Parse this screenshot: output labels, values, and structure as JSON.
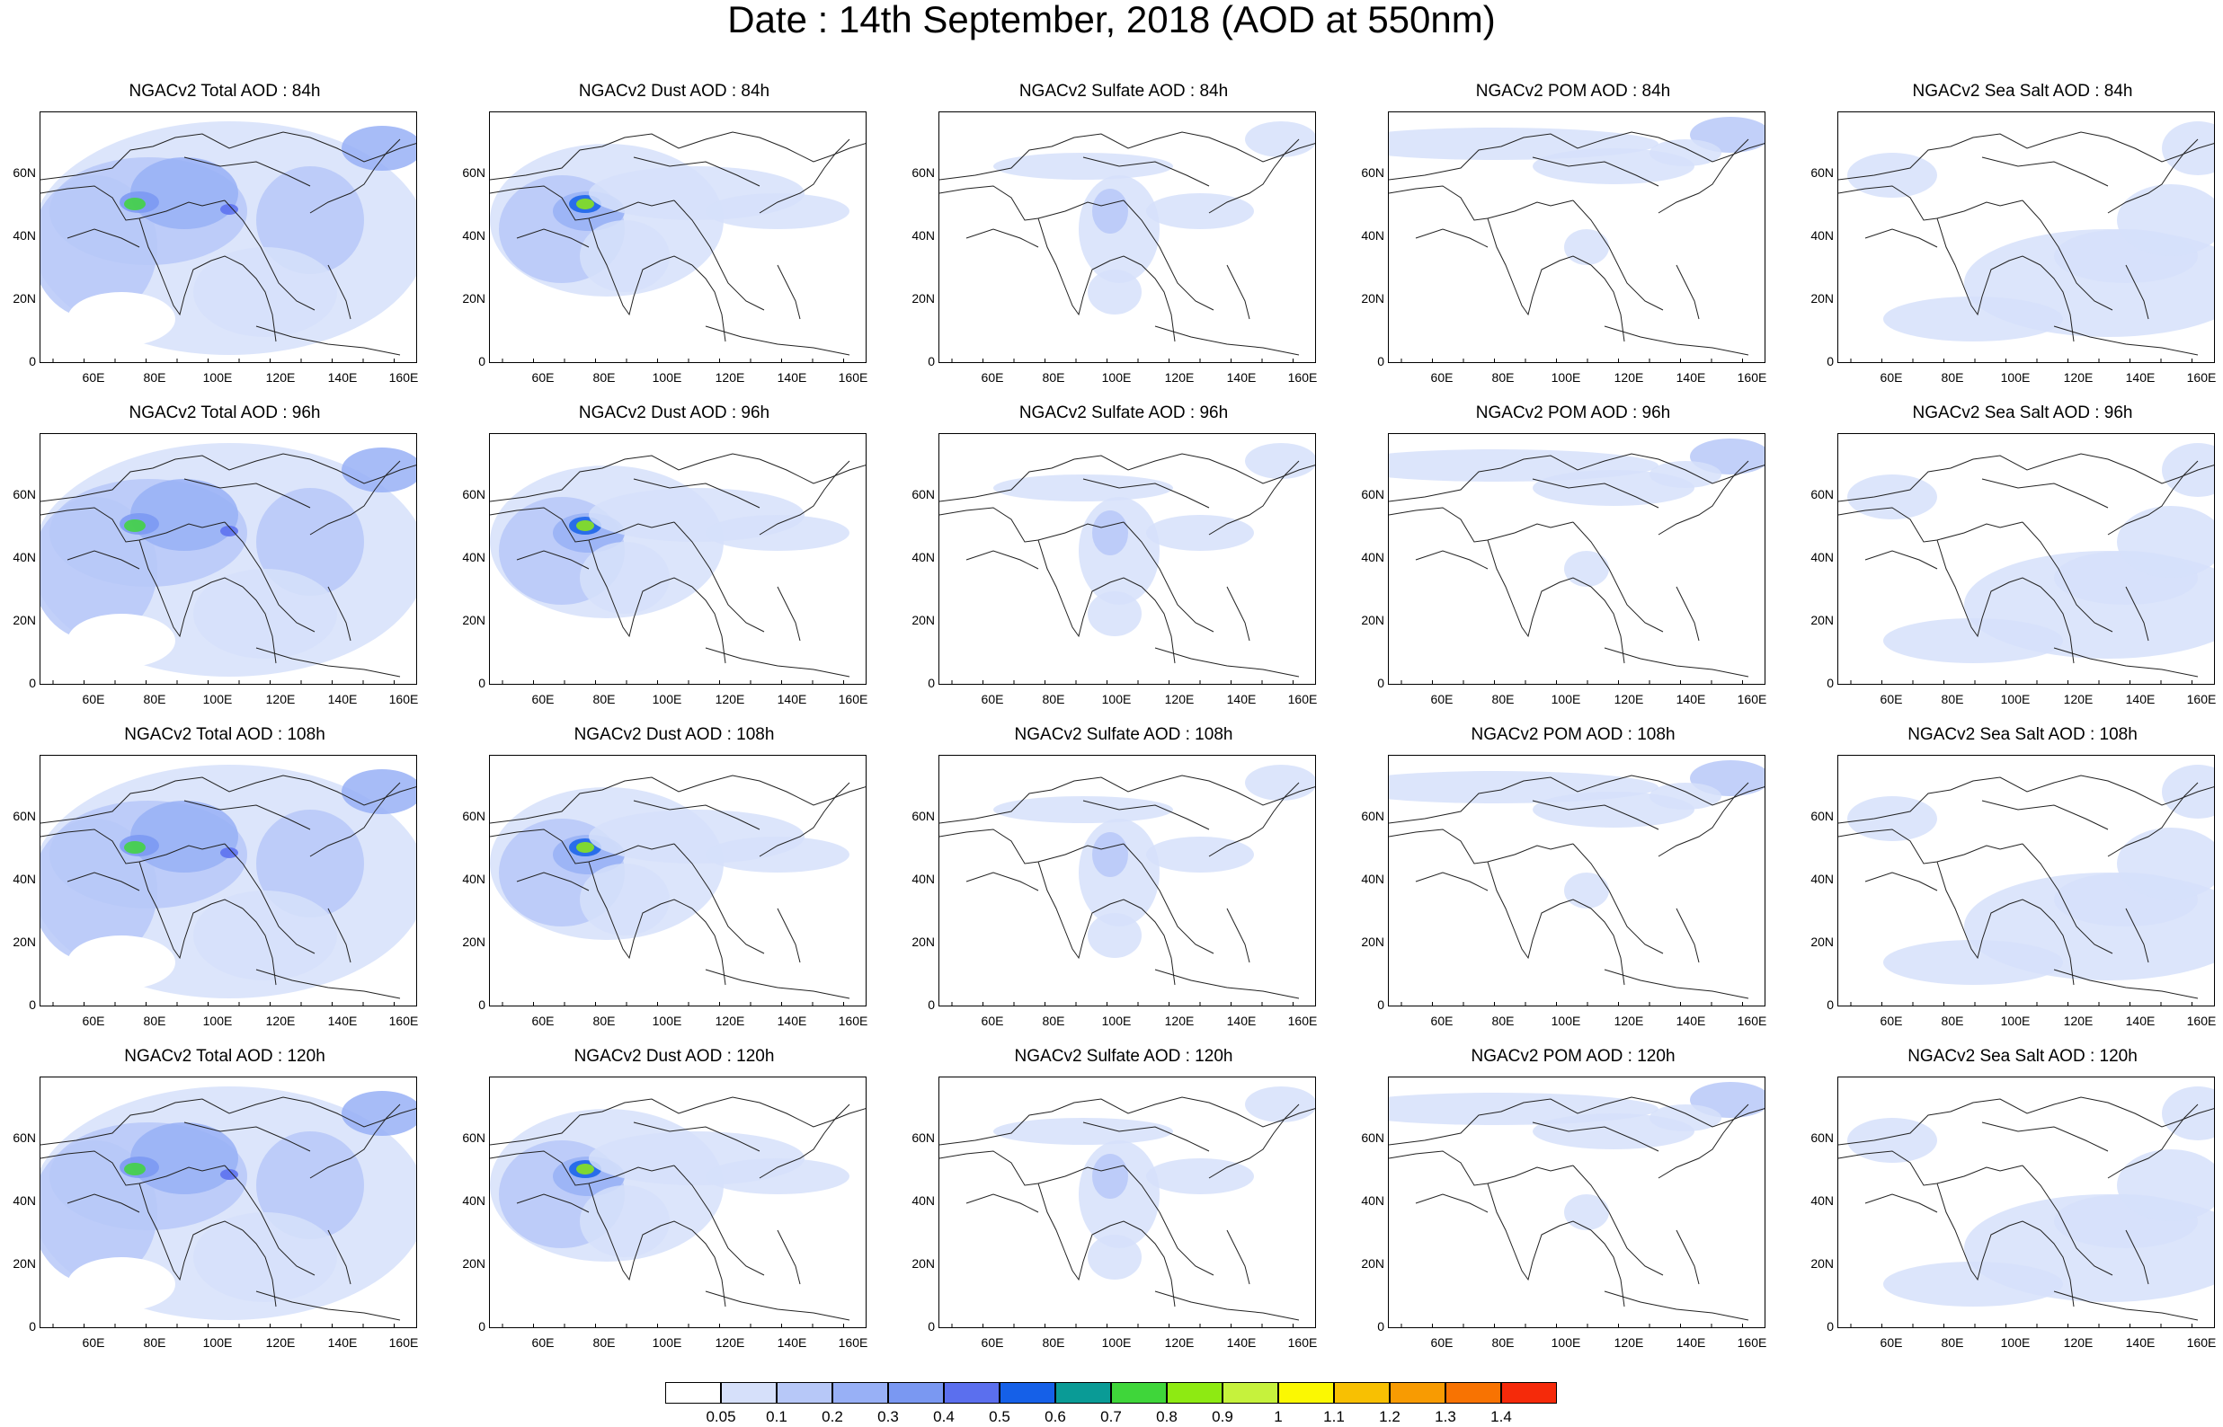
{
  "title": "Date : 14th September, 2018 (AOD at 550nm)",
  "lat_labels": [
    "60N",
    "40N",
    "20N",
    "0"
  ],
  "lon_labels": [
    "60E",
    "80E",
    "100E",
    "120E",
    "140E",
    "160E"
  ],
  "panels": [
    [
      {
        "title": "NGACv2 Total AOD : 84h",
        "species": "total",
        "hour": 84
      },
      {
        "title": "NGACv2 Dust AOD : 84h",
        "species": "dust",
        "hour": 84
      },
      {
        "title": "NGACv2 Sulfate AOD : 84h",
        "species": "sulfate",
        "hour": 84
      },
      {
        "title": "NGACv2 POM AOD : 84h",
        "species": "pom",
        "hour": 84
      },
      {
        "title": "NGACv2 Sea Salt AOD : 84h",
        "species": "seasalt",
        "hour": 84
      }
    ],
    [
      {
        "title": "NGACv2 Total AOD : 96h",
        "species": "total",
        "hour": 96
      },
      {
        "title": "NGACv2 Dust AOD : 96h",
        "species": "dust",
        "hour": 96
      },
      {
        "title": "NGACv2 Sulfate AOD : 96h",
        "species": "sulfate",
        "hour": 96
      },
      {
        "title": "NGACv2 POM AOD : 96h",
        "species": "pom",
        "hour": 96
      },
      {
        "title": "NGACv2 Sea Salt AOD : 96h",
        "species": "seasalt",
        "hour": 96
      }
    ],
    [
      {
        "title": "NGACv2 Total AOD : 108h",
        "species": "total",
        "hour": 108
      },
      {
        "title": "NGACv2 Dust AOD : 108h",
        "species": "dust",
        "hour": 108
      },
      {
        "title": "NGACv2 Sulfate AOD : 108h",
        "species": "sulfate",
        "hour": 108
      },
      {
        "title": "NGACv2 POM AOD : 108h",
        "species": "pom",
        "hour": 108
      },
      {
        "title": "NGACv2 Sea Salt AOD : 108h",
        "species": "seasalt",
        "hour": 108
      }
    ],
    [
      {
        "title": "NGACv2 Total AOD : 120h",
        "species": "total",
        "hour": 120
      },
      {
        "title": "NGACv2 Dust AOD : 120h",
        "species": "dust",
        "hour": 120
      },
      {
        "title": "NGACv2 Sulfate AOD : 120h",
        "species": "sulfate",
        "hour": 120
      },
      {
        "title": "NGACv2 POM AOD : 120h",
        "species": "pom",
        "hour": 120
      },
      {
        "title": "NGACv2 Sea Salt  AOD : 120h",
        "species": "seasalt",
        "hour": 120
      }
    ]
  ],
  "colorbar": {
    "colors": [
      "#ffffff",
      "#d6e0fa",
      "#b7c8f8",
      "#98b0f6",
      "#7a98f2",
      "#5b6fee",
      "#1560e8",
      "#0a9b96",
      "#3fd63a",
      "#8eea12",
      "#c6f23c",
      "#fbf802",
      "#f8c002",
      "#f89b02",
      "#f87302",
      "#f52a0a"
    ],
    "labels": [
      "0.05",
      "0.1",
      "0.2",
      "0.3",
      "0.4",
      "0.5",
      "0.6",
      "0.7",
      "0.8",
      "0.9",
      "1",
      "1.1",
      "1.2",
      "1.3",
      "1.4"
    ]
  }
}
